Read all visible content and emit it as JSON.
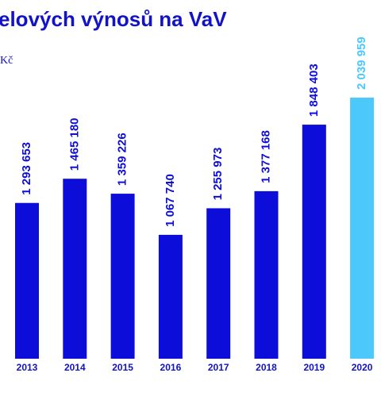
{
  "chart_data": {
    "type": "bar",
    "title": "elových výnosů na VaV",
    "subtitle": "Kč",
    "categories": [
      "2013",
      "2014",
      "2015",
      "2016",
      "2017",
      "2018",
      "2019",
      "2020"
    ],
    "values": [
      1293653,
      1465180,
      1359226,
      1067740,
      1255973,
      1377168,
      1848403,
      2039959
    ],
    "value_labels": [
      "1 293 653",
      "1 465 180",
      "1 359 226",
      "1 067 740",
      "1 255 973",
      "1 377 168",
      "1 848 403",
      "2 039 959"
    ],
    "colors": [
      "#0d0dd9",
      "#0d0dd9",
      "#0d0dd9",
      "#0d0dd9",
      "#0d0dd9",
      "#0d0dd9",
      "#0d0dd9",
      "#4cc8fa"
    ],
    "ylim": [
      190000,
      2040000
    ]
  }
}
